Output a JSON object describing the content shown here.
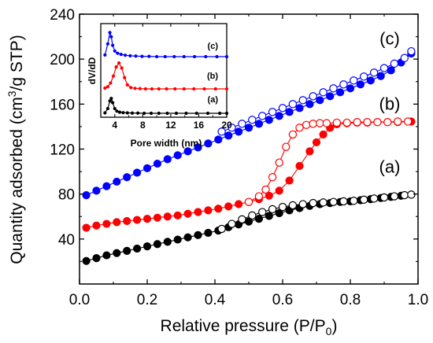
{
  "chart_data": [
    {
      "type": "scatter",
      "xlabel": "Relative pressure (P/P",
      "xlabel_sub": "0",
      "xlabel_end": ")",
      "ylabel": "Quantity adsorbed (cm",
      "ylabel_sup": "3",
      "ylabel_end": "/g STP)",
      "xlim": [
        0.0,
        1.0
      ],
      "ylim": [
        0,
        240
      ],
      "xticks": [
        "0.0",
        "0.2",
        "0.4",
        "0.6",
        "0.8",
        "1.0"
      ],
      "yticks": [
        "40",
        "80",
        "120",
        "160",
        "200",
        "240"
      ],
      "marker_legend": "filled = adsorption, open = desorption",
      "series": [
        {
          "name": "(a)",
          "color": "#000000",
          "label_y": 99,
          "adsorption": {
            "x": [
              0.02,
              0.05,
              0.08,
              0.11,
              0.14,
              0.17,
              0.2,
              0.23,
              0.26,
              0.29,
              0.32,
              0.35,
              0.38,
              0.41,
              0.44,
              0.47,
              0.5,
              0.53,
              0.56,
              0.59,
              0.62,
              0.65,
              0.68,
              0.71,
              0.74,
              0.77,
              0.8,
              0.83,
              0.86,
              0.89,
              0.92,
              0.95,
              0.98
            ],
            "y": [
              20.5,
              23,
              25.5,
              27.5,
              29.5,
              31.5,
              33.5,
              35.5,
              37.5,
              39.5,
              41.5,
              43.5,
              45.5,
              47.5,
              50.5,
              53,
              55.5,
              58,
              60.5,
              63,
              65.5,
              67.5,
              69.5,
              71,
              72,
              73,
              73.5,
              74.5,
              75.5,
              76.5,
              77.5,
              78.5,
              79.5
            ]
          },
          "desorption": {
            "x": [
              0.42,
              0.45,
              0.48,
              0.51,
              0.54,
              0.57,
              0.6,
              0.63,
              0.66,
              0.69,
              0.72,
              0.75,
              0.78,
              0.81,
              0.84,
              0.87,
              0.9,
              0.93,
              0.96,
              0.98
            ],
            "y": [
              49,
              53.5,
              57.5,
              61,
              64,
              66.5,
              68.5,
              70,
              71,
              72,
              72.5,
              73,
              73.5,
              74,
              75,
              76,
              77,
              78,
              79,
              79.5
            ]
          }
        },
        {
          "name": "(b)",
          "color": "#ff0000",
          "label_y": 155,
          "adsorption": {
            "x": [
              0.02,
              0.05,
              0.08,
              0.11,
              0.14,
              0.17,
              0.2,
              0.23,
              0.26,
              0.29,
              0.32,
              0.35,
              0.38,
              0.41,
              0.44,
              0.47,
              0.5,
              0.53,
              0.56,
              0.59,
              0.62,
              0.65,
              0.68,
              0.7,
              0.72,
              0.74,
              0.76,
              0.79,
              0.82,
              0.85,
              0.88,
              0.91,
              0.94,
              0.98
            ],
            "y": [
              50,
              52,
              53.5,
              55,
              56,
              57,
              58,
              59,
              60,
              61,
              62.5,
              64,
              65.5,
              67,
              69,
              71,
              73,
              75.5,
              78.5,
              83,
              92,
              105,
              118,
              126,
              133,
              139,
              142,
              143,
              143.5,
              143.5,
              144,
              144,
              144,
              144.5
            ]
          },
          "desorption": {
            "x": [
              0.5,
              0.53,
              0.55,
              0.57,
              0.59,
              0.61,
              0.63,
              0.65,
              0.67,
              0.69,
              0.71,
              0.73,
              0.76,
              0.79,
              0.82,
              0.85,
              0.88,
              0.91,
              0.94,
              0.97
            ],
            "y": [
              73,
              78,
              84,
              95,
              108,
              122,
              133,
              139,
              141.5,
              142.5,
              143,
              143,
              143.5,
              143.5,
              144,
              144,
              144,
              144,
              144.5,
              144.5
            ]
          }
        },
        {
          "name": "(c)",
          "color": "#0000ff",
          "label_y": 213,
          "adsorption": {
            "x": [
              0.02,
              0.05,
              0.08,
              0.11,
              0.14,
              0.17,
              0.2,
              0.23,
              0.26,
              0.29,
              0.32,
              0.35,
              0.38,
              0.41,
              0.44,
              0.47,
              0.5,
              0.53,
              0.56,
              0.59,
              0.62,
              0.65,
              0.68,
              0.71,
              0.74,
              0.77,
              0.8,
              0.83,
              0.86,
              0.89,
              0.92,
              0.95,
              0.98
            ],
            "y": [
              79,
              83,
              87,
              91,
              95,
              99,
              103,
              107,
              111,
              114.5,
              118,
              121.5,
              125,
              128.5,
              132,
              135.5,
              139,
              142.5,
              146,
              149.5,
              153,
              156.5,
              160,
              163.5,
              167,
              170.5,
              174,
              177.5,
              181,
              185,
              190,
              197,
              205
            ]
          },
          "desorption": {
            "x": [
              0.42,
              0.45,
              0.48,
              0.51,
              0.54,
              0.57,
              0.6,
              0.63,
              0.66,
              0.69,
              0.72,
              0.75,
              0.78,
              0.81,
              0.84,
              0.87,
              0.9,
              0.93,
              0.96,
              0.98
            ],
            "y": [
              135.5,
              139,
              142.5,
              146,
              149.5,
              153,
              156.5,
              160,
              163.5,
              167,
              170.5,
              174,
              177.5,
              181,
              184.5,
              188,
              192,
              196,
              201,
              207
            ]
          }
        }
      ]
    },
    {
      "type": "line",
      "xlabel": "Pore width (nm)",
      "ylabel": "dV/dD",
      "xlim": [
        2,
        20
      ],
      "xticks": [
        "4",
        "8",
        "12",
        "16",
        "20"
      ],
      "series": [
        {
          "name": "(a)",
          "color": "#000000",
          "x": [
            2.6,
            3.0,
            3.3,
            3.5,
            3.7,
            4.0,
            4.3,
            4.7,
            5.2,
            5.8,
            6.5,
            7.3,
            8.2,
            9.2,
            10.3,
            11.5,
            12.8,
            14.2,
            15.7,
            17.3,
            19.0,
            20.0
          ],
          "y": [
            0.02,
            0.22,
            0.58,
            0.7,
            0.5,
            0.22,
            0.1,
            0.05,
            0.03,
            0.02,
            0.01,
            0.01,
            0.0,
            0.0,
            0.0,
            0.0,
            0.0,
            0.0,
            0.0,
            0.0,
            0.0,
            0.0
          ]
        },
        {
          "name": "(b)",
          "color": "#ff0000",
          "x": [
            2.6,
            3.0,
            3.4,
            3.8,
            4.2,
            4.6,
            5.0,
            5.4,
            5.8,
            6.3,
            6.9,
            7.6,
            8.4,
            9.3,
            10.3,
            11.4,
            12.6,
            13.9,
            15.3,
            16.8,
            18.4,
            20.0
          ],
          "y": [
            0.03,
            0.08,
            0.22,
            0.48,
            0.82,
            0.97,
            0.78,
            0.42,
            0.15,
            0.05,
            0.02,
            0.01,
            0.0,
            0.0,
            0.0,
            0.0,
            0.0,
            0.0,
            0.0,
            0.0,
            0.0,
            0.0
          ]
        },
        {
          "name": "(c)",
          "color": "#0000ff",
          "x": [
            2.6,
            3.0,
            3.3,
            3.5,
            3.7,
            4.0,
            4.4,
            4.9,
            5.5,
            6.2,
            7.0,
            7.9,
            8.9,
            10.0,
            11.2,
            12.5,
            13.9,
            15.4,
            17.0,
            18.6,
            20.0
          ],
          "y": [
            0.06,
            0.45,
            0.85,
            0.7,
            0.4,
            0.2,
            0.12,
            0.08,
            0.05,
            0.03,
            0.02,
            0.01,
            0.01,
            0.0,
            0.0,
            0.0,
            0.0,
            0.0,
            0.0,
            0.0,
            0.0
          ]
        }
      ]
    }
  ]
}
